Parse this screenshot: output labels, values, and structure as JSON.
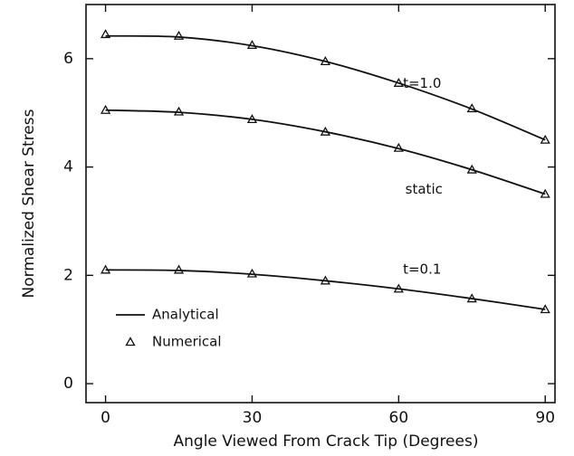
{
  "chart_data": {
    "type": "line",
    "xlabel": "Angle Viewed From Crack Tip (Degrees)",
    "ylabel": "Normalized Shear Stress",
    "xlim": [
      -4,
      92
    ],
    "ylim": [
      -0.35,
      7.0
    ],
    "xticks": [
      0,
      30,
      60,
      90
    ],
    "yticks": [
      0,
      2,
      4,
      6
    ],
    "x": [
      0,
      15,
      30,
      45,
      60,
      75,
      90
    ],
    "legend": [
      "Analytical",
      "Numerical"
    ],
    "color": "#111111",
    "series": [
      {
        "name": "t=1.0",
        "analytical": [
          6.42,
          6.4,
          6.24,
          5.95,
          5.55,
          5.07,
          4.5
        ],
        "numerical": [
          6.45,
          6.42,
          6.25,
          5.95,
          5.55,
          5.08,
          4.5
        ]
      },
      {
        "name": "static",
        "analytical": [
          5.05,
          5.01,
          4.88,
          4.65,
          4.34,
          3.95,
          3.5
        ],
        "numerical": [
          5.05,
          5.02,
          4.88,
          4.65,
          4.35,
          3.95,
          3.5
        ]
      },
      {
        "name": "t=0.1",
        "analytical": [
          2.1,
          2.09,
          2.02,
          1.9,
          1.75,
          1.57,
          1.37
        ],
        "numerical": [
          2.1,
          2.1,
          2.03,
          1.9,
          1.75,
          1.57,
          1.37
        ]
      }
    ]
  }
}
